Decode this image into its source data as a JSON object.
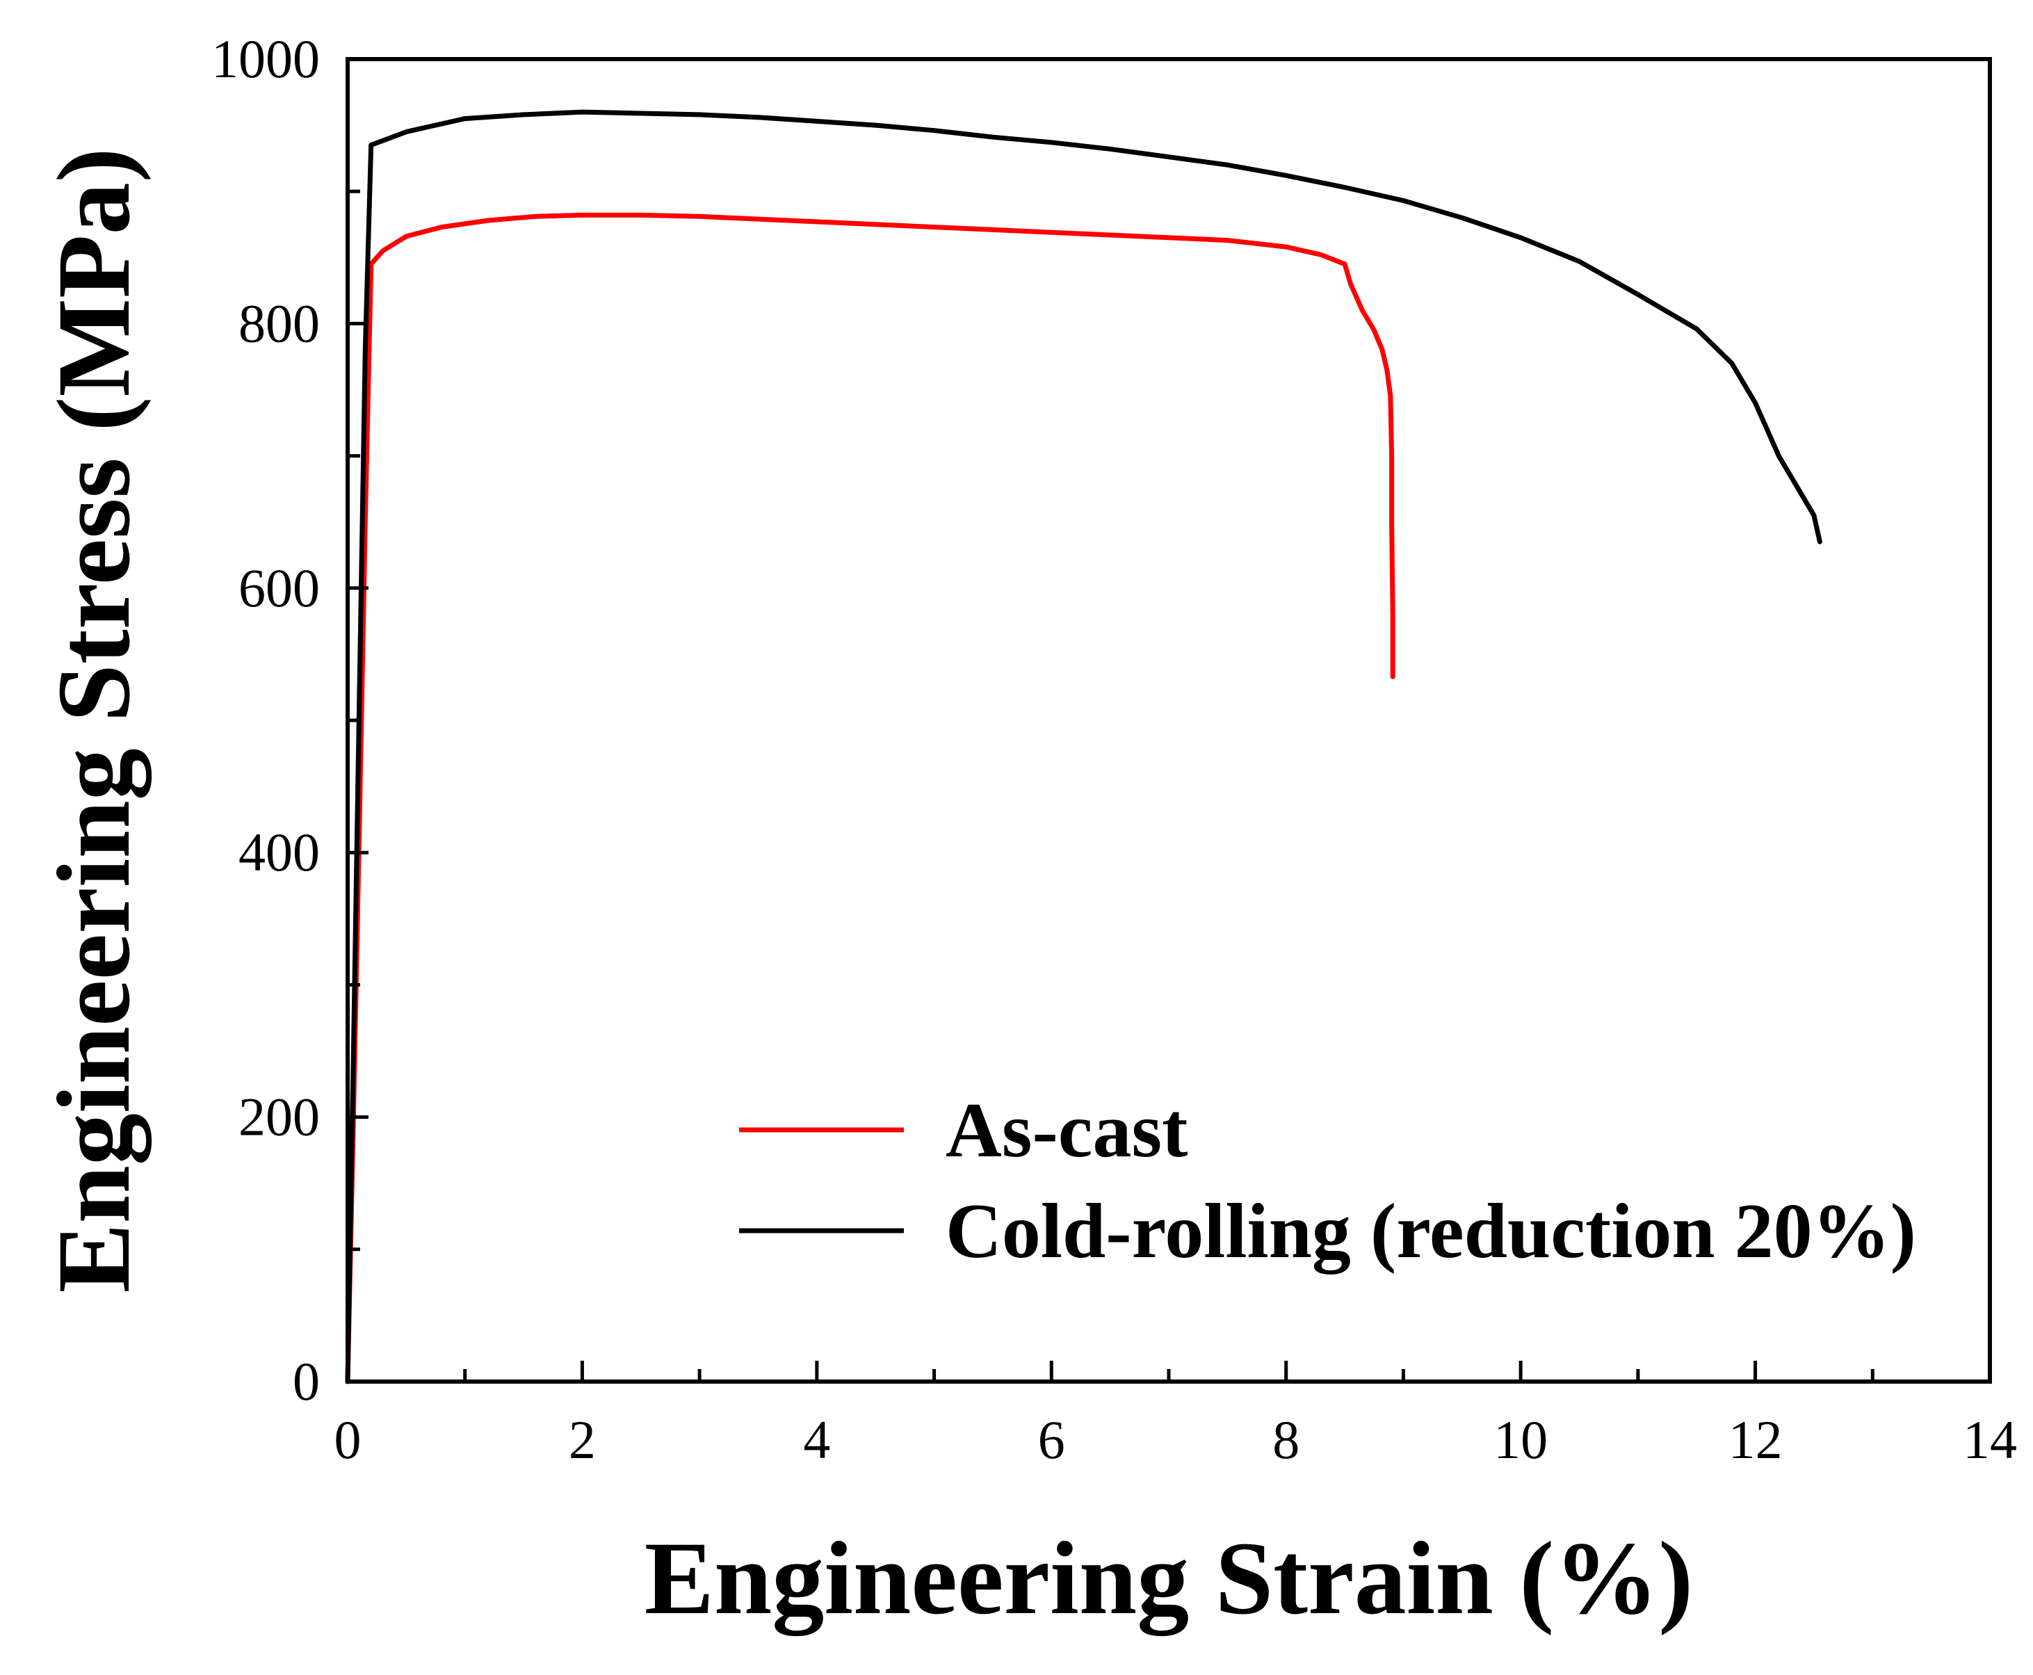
{
  "chart_data": {
    "type": "line",
    "title": "",
    "xlabel": "Engineering Strain (%)",
    "ylabel": "Engineering Stress (MPa)",
    "xlim": [
      0,
      14
    ],
    "ylim": [
      0,
      1000
    ],
    "x_ticks": [
      0,
      2,
      4,
      6,
      8,
      10,
      12,
      14
    ],
    "x_tick_labels": [
      "0",
      "2",
      "4",
      "6",
      "8",
      "10",
      "12",
      "14"
    ],
    "y_ticks": [
      0,
      200,
      400,
      600,
      800,
      1000
    ],
    "y_tick_labels": [
      "0",
      "200",
      "400",
      "600",
      "800",
      "1000"
    ],
    "grid": false,
    "legend_position": "bottom-right",
    "series": [
      {
        "name": "As-cast",
        "color": "#ff0000",
        "x": [
          0,
          0.05,
          0.1,
          0.15,
          0.2,
          0.3,
          0.5,
          0.8,
          1.2,
          1.6,
          2.0,
          2.5,
          3.0,
          3.5,
          4.0,
          4.5,
          5.0,
          5.5,
          6.0,
          6.5,
          7.0,
          7.5,
          8.0,
          8.3,
          8.5,
          8.55,
          8.65,
          8.75,
          8.82,
          8.86,
          8.89,
          8.9,
          8.9,
          8.91,
          8.91
        ],
        "y": [
          0,
          200,
          420,
          650,
          845,
          855,
          866,
          873,
          878,
          881,
          882,
          882,
          881,
          879,
          877,
          875,
          873,
          871,
          869,
          867,
          865,
          863,
          858,
          852,
          845,
          830,
          810,
          795,
          780,
          765,
          745,
          700,
          650,
          580,
          533
        ]
      },
      {
        "name": "Cold-rolling (reduction 20%)",
        "color": "#000000",
        "x": [
          0,
          0.05,
          0.1,
          0.15,
          0.2,
          0.5,
          1.0,
          1.5,
          2.0,
          2.5,
          3.0,
          3.5,
          4.0,
          4.5,
          5.0,
          5.5,
          6.0,
          6.5,
          7.0,
          7.5,
          8.0,
          8.5,
          9.0,
          9.5,
          10.0,
          10.5,
          11.0,
          11.5,
          11.8,
          12.0,
          12.2,
          12.4,
          12.5,
          12.55
        ],
        "y": [
          0,
          250,
          520,
          780,
          935,
          945,
          955,
          958,
          960,
          959,
          958,
          956,
          953,
          950,
          946,
          941,
          937,
          932,
          926,
          920,
          912,
          903,
          893,
          880,
          865,
          847,
          822,
          796,
          770,
          740,
          700,
          670,
          655,
          635
        ]
      }
    ]
  }
}
